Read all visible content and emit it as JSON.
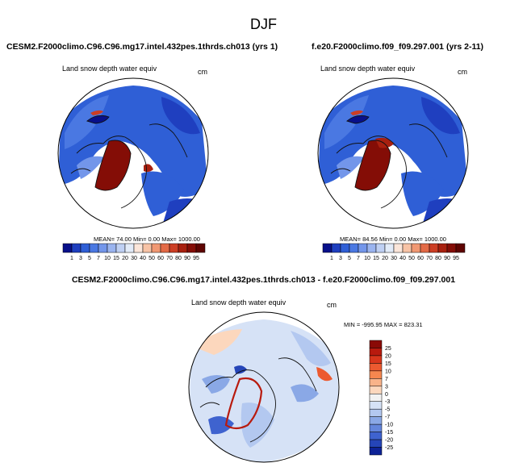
{
  "chart_data": [
    {
      "type": "heatmap",
      "projection": "polar-stereographic",
      "season_title": "DJF",
      "title": "CESM2.F2000climo.C96.C96.mg17.intel.432pes.1thrds.ch013 (yrs 1)",
      "variable": "Land snow depth water equiv",
      "units": "cm",
      "stats": {
        "mean": "74.00",
        "min": "0.00",
        "max": "1000.00"
      },
      "stats_text": "MEAN=  74.00  Min=   0.00  Max= 1000.00",
      "colorbar_levels": [
        "1",
        "3",
        "5",
        "7",
        "10",
        "15",
        "20",
        "30",
        "40",
        "50",
        "60",
        "70",
        "80",
        "90",
        "95"
      ],
      "colorbar_colors": [
        "#08108a",
        "#1f3fbf",
        "#2f5fd6",
        "#4a78e2",
        "#7396ea",
        "#9ab4ef",
        "#bfd0f3",
        "#e2ebf8",
        "#fbe6da",
        "#f7c3a6",
        "#f09873",
        "#e36a46",
        "#cc3e24",
        "#a8200f",
        "#840d06",
        "#5e0402"
      ]
    },
    {
      "type": "heatmap",
      "projection": "polar-stereographic",
      "title": "f.e20.F2000climo.f09_f09.297.001 (yrs 2-11)",
      "variable": "Land snow depth water equiv",
      "units": "cm",
      "stats": {
        "mean": "84.56",
        "min": "0.00",
        "max": "1000.00"
      },
      "stats_text": "MEAN=  84.56  Min=   0.00  Max= 1000.00",
      "colorbar_levels": [
        "1",
        "3",
        "5",
        "7",
        "10",
        "15",
        "20",
        "30",
        "40",
        "50",
        "60",
        "70",
        "80",
        "90",
        "95"
      ]
    },
    {
      "type": "heatmap",
      "projection": "polar-stereographic",
      "title": "CESM2.F2000climo.C96.C96.mg17.intel.432pes.1thrds.ch013 - f.e20.F2000climo.f09_f09.297.001",
      "variable": "Land snow depth water equiv",
      "units": "cm",
      "stats": {
        "min": "-995.95",
        "max": "823.31"
      },
      "stats_text": "MIN = -995.95 MAX = 823.31",
      "colorbar_levels": [
        "25",
        "20",
        "15",
        "10",
        "7",
        "3",
        "0",
        "-3",
        "-5",
        "-7",
        "-10",
        "-15",
        "-20",
        "-25"
      ],
      "colorbar_colors": [
        "#8a0a06",
        "#b81a0e",
        "#d8361c",
        "#ec5a30",
        "#f6874f",
        "#f9b38a",
        "#fcd7bd",
        "#f2f2f2",
        "#d6e2f6",
        "#b3c8f0",
        "#8aa8e6",
        "#6486dc",
        "#3f63cf",
        "#2545b8",
        "#0d2296"
      ]
    }
  ]
}
